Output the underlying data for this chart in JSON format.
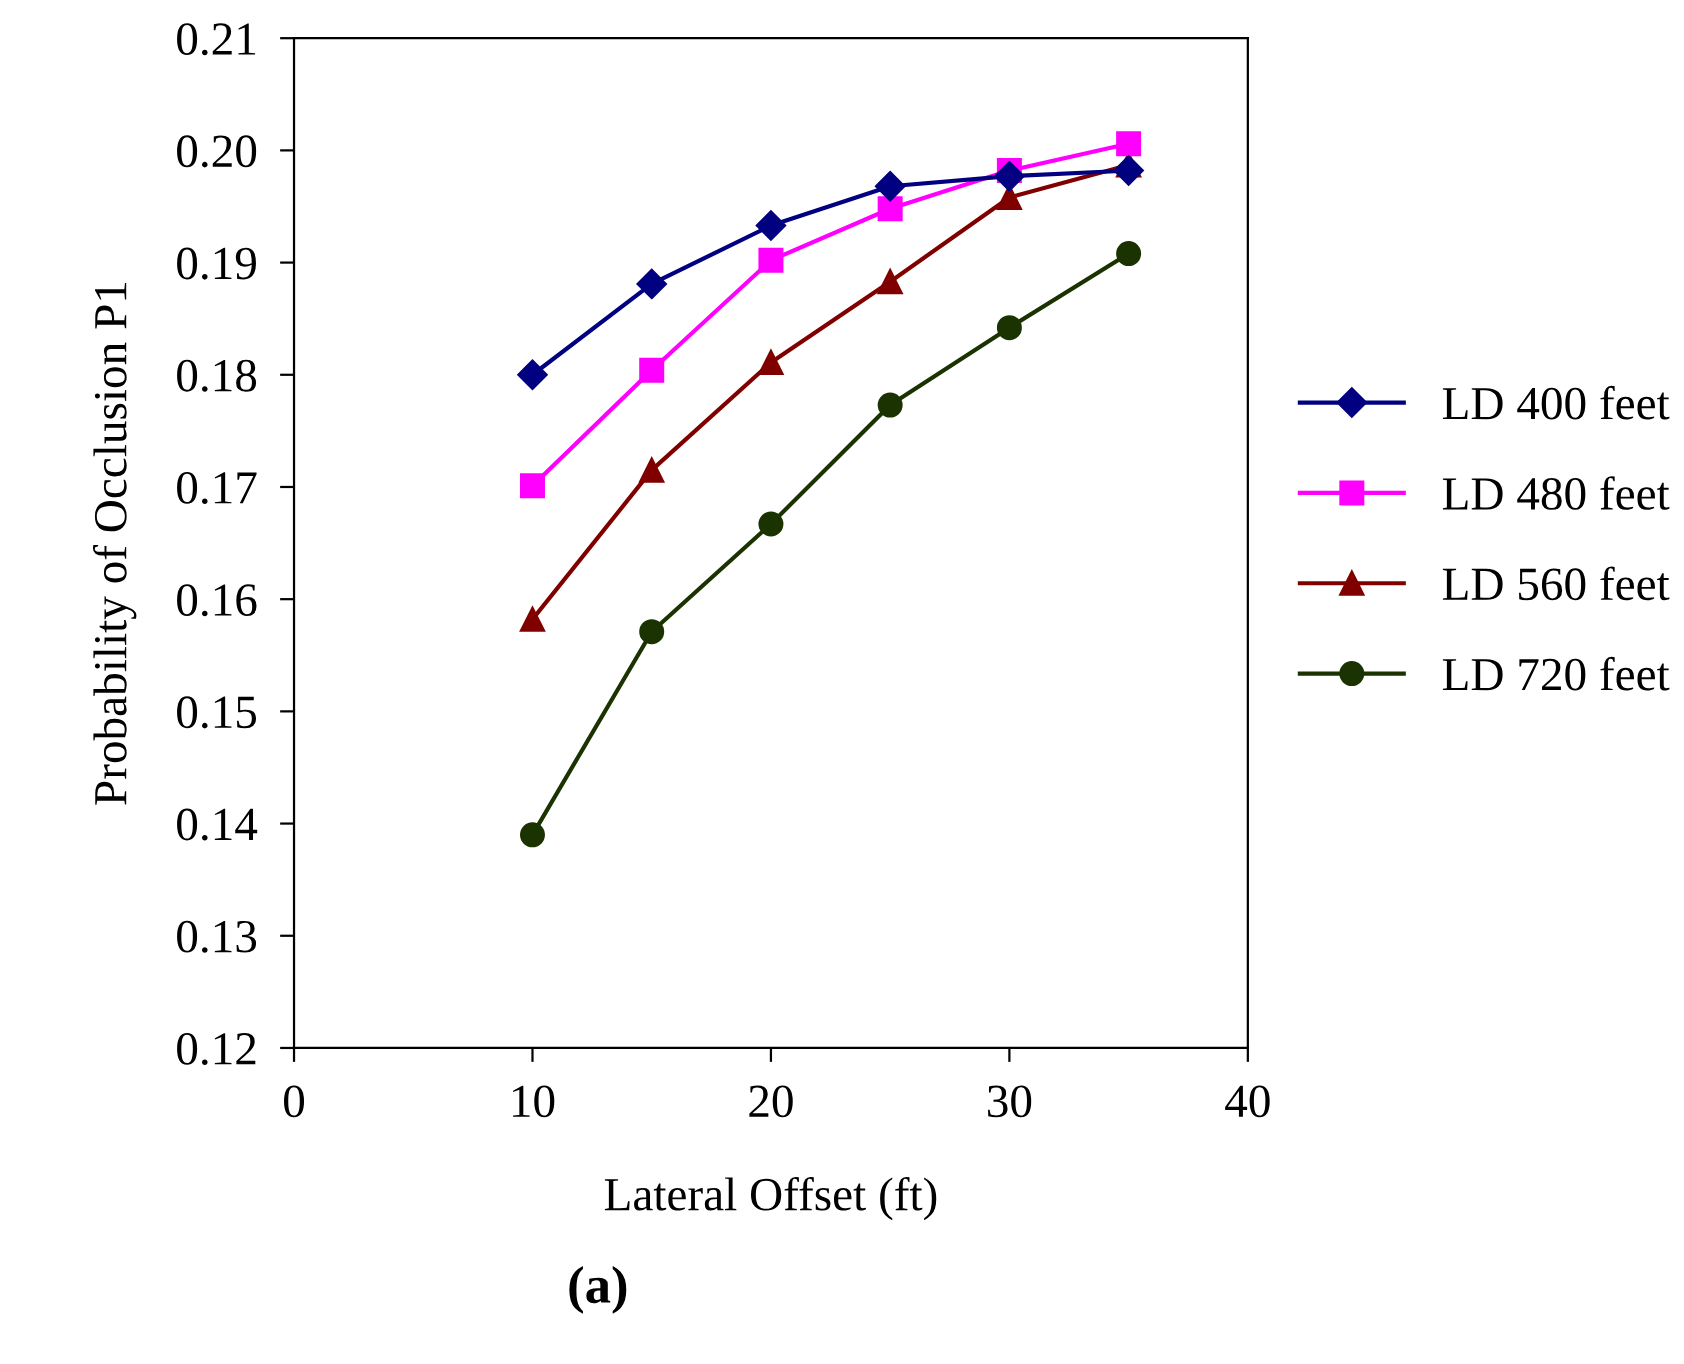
{
  "chart_data": {
    "type": "line",
    "xlabel": "Lateral Offset (ft)",
    "ylabel": "Probability of Occlusion P1",
    "x": [
      10,
      15,
      20,
      25,
      30,
      35
    ],
    "series": [
      {
        "name": "LD 400 feet",
        "color": "#000080",
        "marker": "diamond",
        "values": [
          0.18,
          0.1881,
          0.1933,
          0.1968,
          0.1977,
          0.1982
        ]
      },
      {
        "name": "LD 480 feet",
        "color": "#ff00ff",
        "marker": "square",
        "values": [
          0.1701,
          0.1804,
          0.1902,
          0.1948,
          0.1982,
          0.2006
        ]
      },
      {
        "name": "LD 560 feet",
        "color": "#800000",
        "marker": "triangle",
        "values": [
          0.1582,
          0.1715,
          0.1811,
          0.1883,
          0.1958,
          0.1987
        ]
      },
      {
        "name": "LD 720 feet",
        "color": "#1a3300",
        "marker": "circle",
        "values": [
          0.139,
          0.1571,
          0.1667,
          0.1773,
          0.1842,
          0.1908
        ]
      }
    ],
    "xlim": [
      0,
      40
    ],
    "xticks": [
      0,
      10,
      20,
      30,
      40
    ],
    "ylim": [
      0.12,
      0.21
    ],
    "yticks": [
      {
        "value": 0.12,
        "label": "0.12"
      },
      {
        "value": 0.13,
        "label": "0.13"
      },
      {
        "value": 0.14,
        "label": "0.14"
      },
      {
        "value": 0.15,
        "label": "0.15"
      },
      {
        "value": 0.16,
        "label": "0.16"
      },
      {
        "value": 0.17,
        "label": "0.17"
      },
      {
        "value": 0.18,
        "label": "0.18"
      },
      {
        "value": 0.19,
        "label": "0.19"
      },
      {
        "value": 0.2,
        "label": "0.20"
      },
      {
        "value": 0.21,
        "label": "0.21"
      }
    ],
    "grid": false,
    "legend": "right",
    "line_style": "solid",
    "annotations": [
      "(a)"
    ]
  }
}
